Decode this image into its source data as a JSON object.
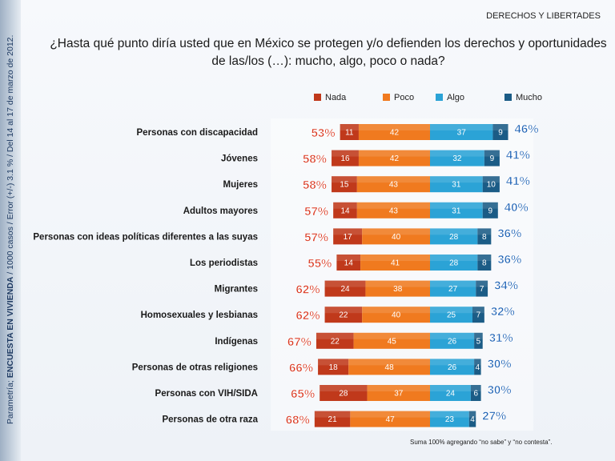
{
  "sidebar": {
    "text_prefix": "Parametría; ",
    "text_bold": "ENCUESTA EN VIVIENDA",
    "text_suffix": " / 1000 casos / Error (+/-) 3.1 % / Del 14 al 17 de marzo de 2012."
  },
  "header": {
    "section": "DERECHOS Y LIBERTADES",
    "question": "¿Hasta qué punto diría usted que en México se protegen y/o defienden los derechos y oportunidades de las/los (…): mucho, algo, poco o nada?"
  },
  "footnote": "Suma 100%  agregando “no sabe” y “no contesta”.",
  "colors": {
    "nada": "#c0391b",
    "poco": "#f07a1f",
    "algo": "#2ba3d6",
    "mucho": "#1b5c86",
    "neg_total": "#d9361f",
    "pos_total": "#1f63b5"
  },
  "chart_data": {
    "type": "bar",
    "stacked": "diverging",
    "categories": [
      "Personas con discapacidad",
      "Jóvenes",
      "Mujeres",
      "Adultos mayores",
      "Personas con ideas políticas diferentes a las suyas",
      "Los periodistas",
      "Migrantes",
      "Homosexuales y lesbianas",
      "Indígenas",
      "Personas de otras religiones",
      "Personas con VIH/SIDA",
      "Personas de otra raza"
    ],
    "series": [
      {
        "name": "Nada",
        "values": [
          11,
          16,
          15,
          14,
          17,
          14,
          24,
          22,
          22,
          18,
          28,
          21
        ]
      },
      {
        "name": "Poco",
        "values": [
          42,
          42,
          43,
          43,
          40,
          41,
          38,
          40,
          45,
          48,
          37,
          47
        ]
      },
      {
        "name": "Algo",
        "values": [
          37,
          32,
          31,
          31,
          28,
          28,
          27,
          25,
          26,
          26,
          24,
          23
        ]
      },
      {
        "name": "Mucho",
        "values": [
          9,
          9,
          10,
          9,
          8,
          8,
          7,
          7,
          5,
          4,
          6,
          4
        ]
      }
    ],
    "negative_totals": [
      "53%",
      "58%",
      "58%",
      "57%",
      "57%",
      "55%",
      "62%",
      "62%",
      "67%",
      "66%",
      "65%",
      "68%"
    ],
    "positive_totals": [
      "46%",
      "41%",
      "41%",
      "40%",
      "36%",
      "36%",
      "34%",
      "32%",
      "31%",
      "30%",
      "30%",
      "27%"
    ],
    "legend_position": "top",
    "grid": false
  }
}
